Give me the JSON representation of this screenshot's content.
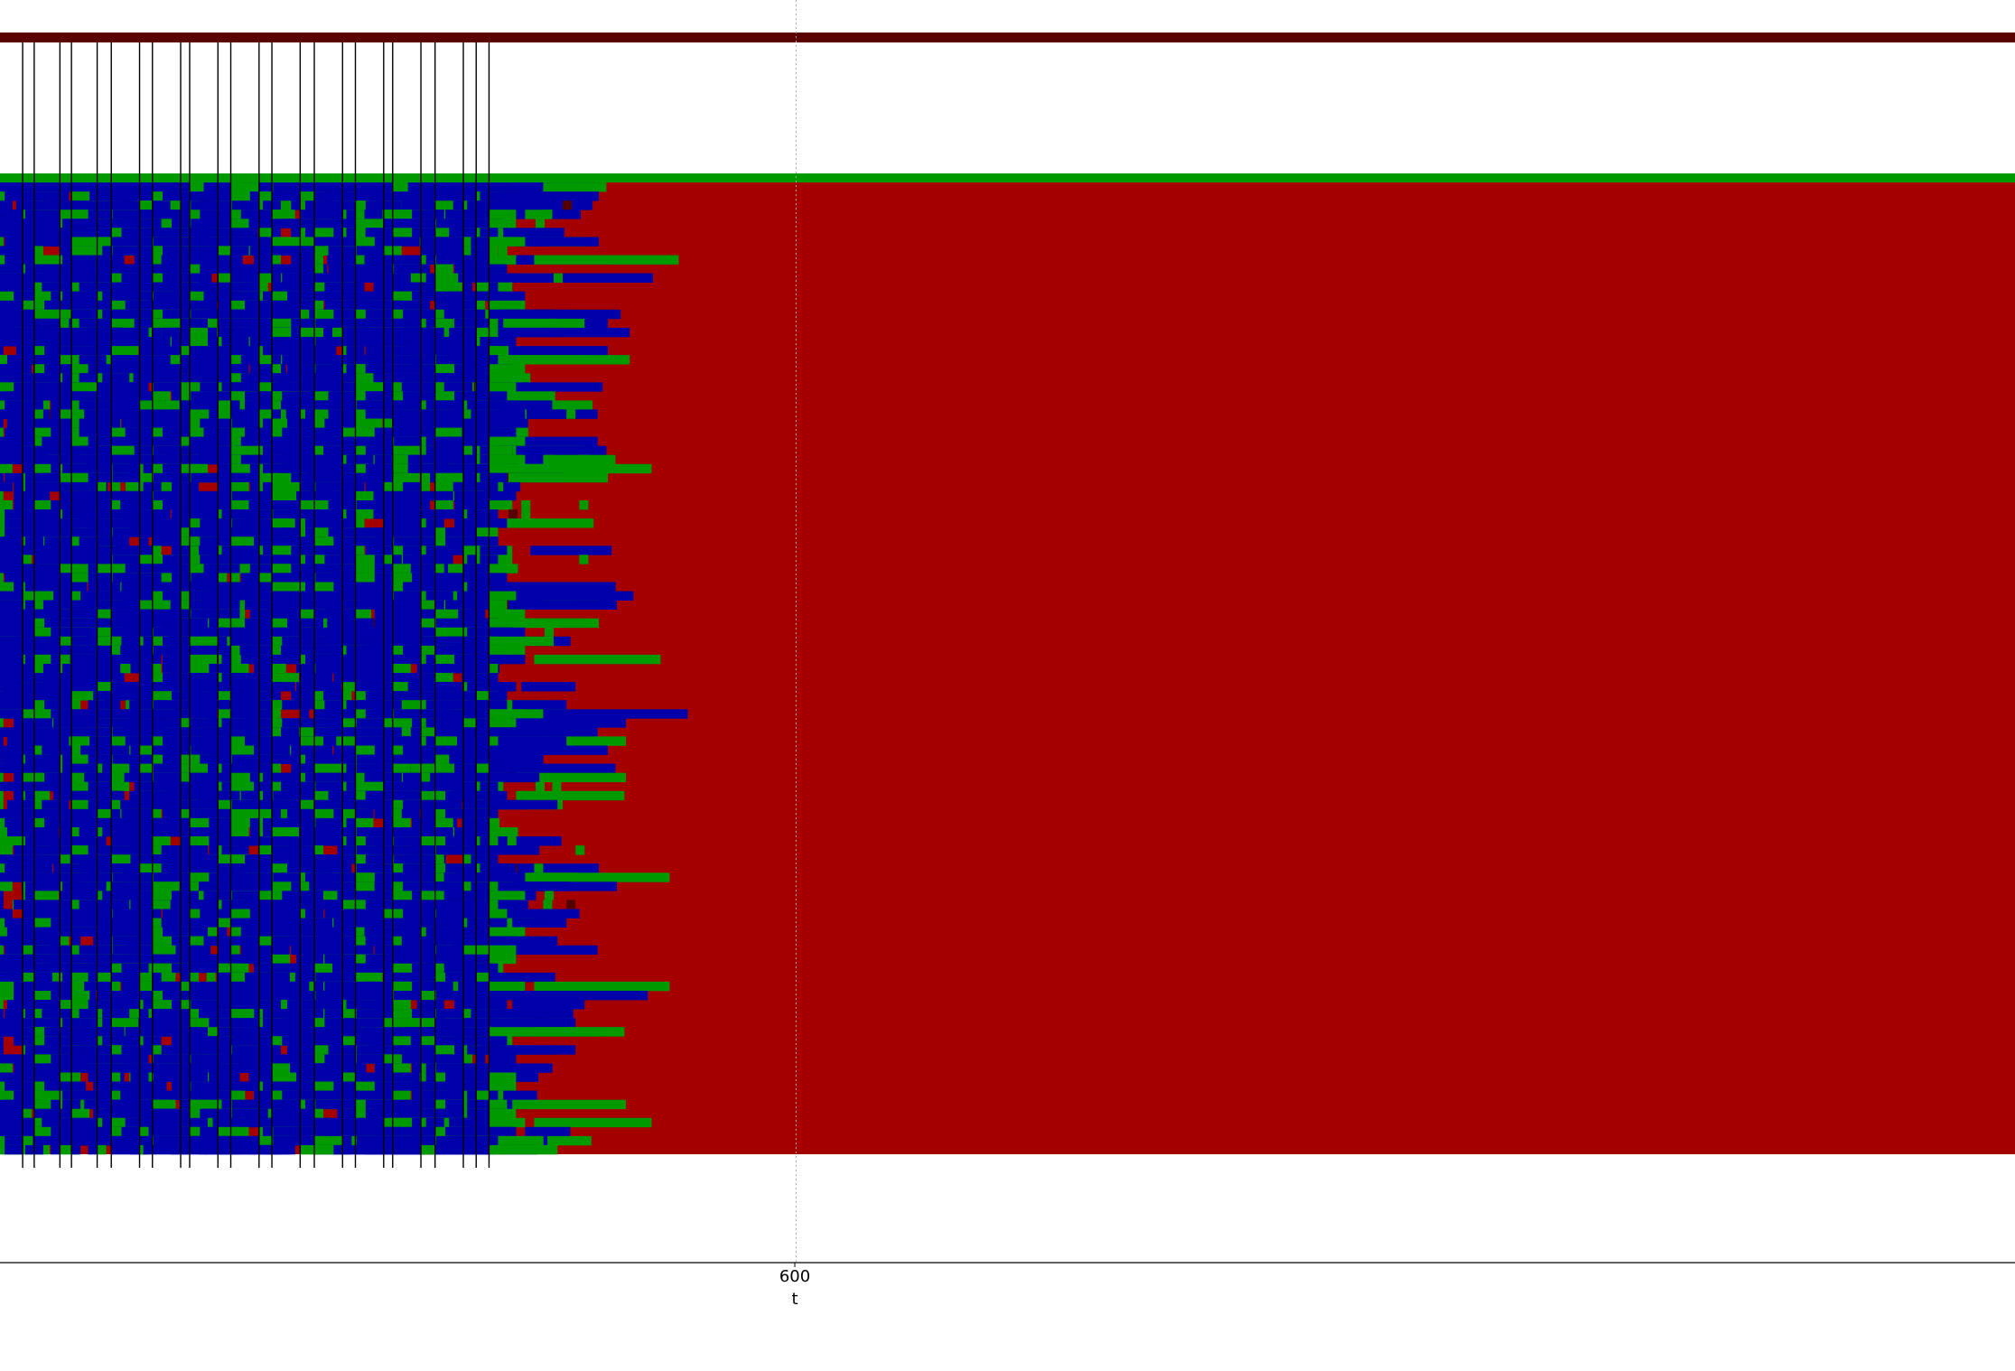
{
  "chart_data": {
    "type": "heatmap",
    "title": "",
    "xlabel": "t",
    "ylabel": "",
    "x_ticks": [
      600
    ],
    "x_tick_labels": [
      "600"
    ],
    "grid": false,
    "legend": "none",
    "row_count": 108,
    "states": [
      "red",
      "blue",
      "green",
      "dark-red"
    ],
    "colors": {
      "red": "#a50000",
      "blue": "#0000aa",
      "green": "#009900",
      "dark-red": "#550000",
      "top_band": "#5a0000",
      "axis": "#000000",
      "dotted_line": "#aaaaaa"
    },
    "marker_times": [
      -23,
      -1,
      8,
      28,
      37,
      57,
      68,
      90,
      100,
      122,
      129,
      151,
      161,
      183,
      193,
      215,
      226,
      248,
      258,
      280,
      287,
      309,
      320,
      342,
      352,
      362
    ],
    "dotted_line_t": 601
  }
}
